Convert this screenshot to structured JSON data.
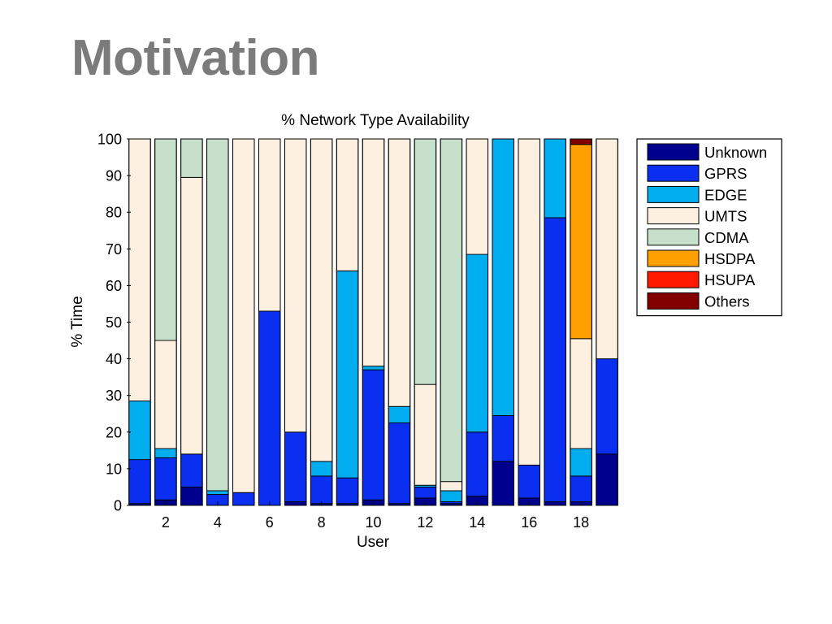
{
  "slide": {
    "title": "Motivation"
  },
  "colors": {
    "Unknown": "#00008f",
    "GPRS": "#0a2ff0",
    "EDGE": "#00aeef",
    "UMTS": "#fdf0e0",
    "CDMA": "#c5dfca",
    "HSDPA": "#ff9f00",
    "HSUPA": "#ff1a00",
    "Others": "#820000"
  },
  "chart_data": {
    "type": "bar",
    "stacked": true,
    "title": "% Network Type Availability",
    "xlabel": "User",
    "ylabel": "% Time",
    "ylim": [
      0,
      100
    ],
    "yticks": [
      0,
      10,
      20,
      30,
      40,
      50,
      60,
      70,
      80,
      90,
      100
    ],
    "xticks": [
      2,
      4,
      6,
      8,
      10,
      12,
      14,
      16,
      18
    ],
    "categories": [
      1,
      2,
      3,
      4,
      5,
      6,
      7,
      8,
      9,
      10,
      11,
      12,
      13,
      14,
      15,
      16,
      17,
      18,
      19
    ],
    "legend_position": "right",
    "series": [
      {
        "name": "Unknown",
        "values": [
          0.5,
          1.5,
          5,
          0,
          0,
          0,
          1,
          0.5,
          0.5,
          1.5,
          0.5,
          2,
          0.5,
          2.5,
          12,
          2,
          1,
          1,
          14
        ]
      },
      {
        "name": "GPRS",
        "values": [
          12,
          11.5,
          9,
          3,
          3.5,
          53,
          19,
          7.5,
          7,
          35.5,
          22,
          3,
          0.5,
          17.5,
          12.5,
          9,
          77.5,
          7,
          26
        ]
      },
      {
        "name": "EDGE",
        "values": [
          16,
          2.5,
          0,
          1,
          0,
          0,
          0,
          4,
          56.5,
          1,
          4.5,
          0.5,
          3,
          48.5,
          75.5,
          0,
          21.5,
          7.5,
          0
        ]
      },
      {
        "name": "UMTS",
        "values": [
          71.5,
          29.5,
          75.5,
          0,
          96.5,
          47,
          80,
          88,
          36,
          62,
          73,
          27.5,
          2.5,
          31.5,
          0,
          89,
          0,
          30,
          60
        ]
      },
      {
        "name": "CDMA",
        "values": [
          0,
          55,
          10.5,
          96,
          0,
          0,
          0,
          0,
          0,
          0,
          0,
          67,
          93.5,
          0,
          0,
          0,
          0,
          0,
          0
        ]
      },
      {
        "name": "HSDPA",
        "values": [
          0,
          0,
          0,
          0,
          0,
          0,
          0,
          0,
          0,
          0,
          0,
          0,
          0,
          0,
          0,
          0,
          0,
          53,
          0
        ]
      },
      {
        "name": "HSUPA",
        "values": [
          0,
          0,
          0,
          0,
          0,
          0,
          0,
          0,
          0,
          0,
          0,
          0,
          0,
          0,
          0,
          0,
          0,
          0,
          0
        ]
      },
      {
        "name": "Others",
        "values": [
          0,
          0,
          0,
          0,
          0,
          0,
          0,
          0,
          0,
          0,
          0,
          0,
          0,
          0,
          0,
          0,
          0,
          1.5,
          0
        ]
      }
    ]
  }
}
